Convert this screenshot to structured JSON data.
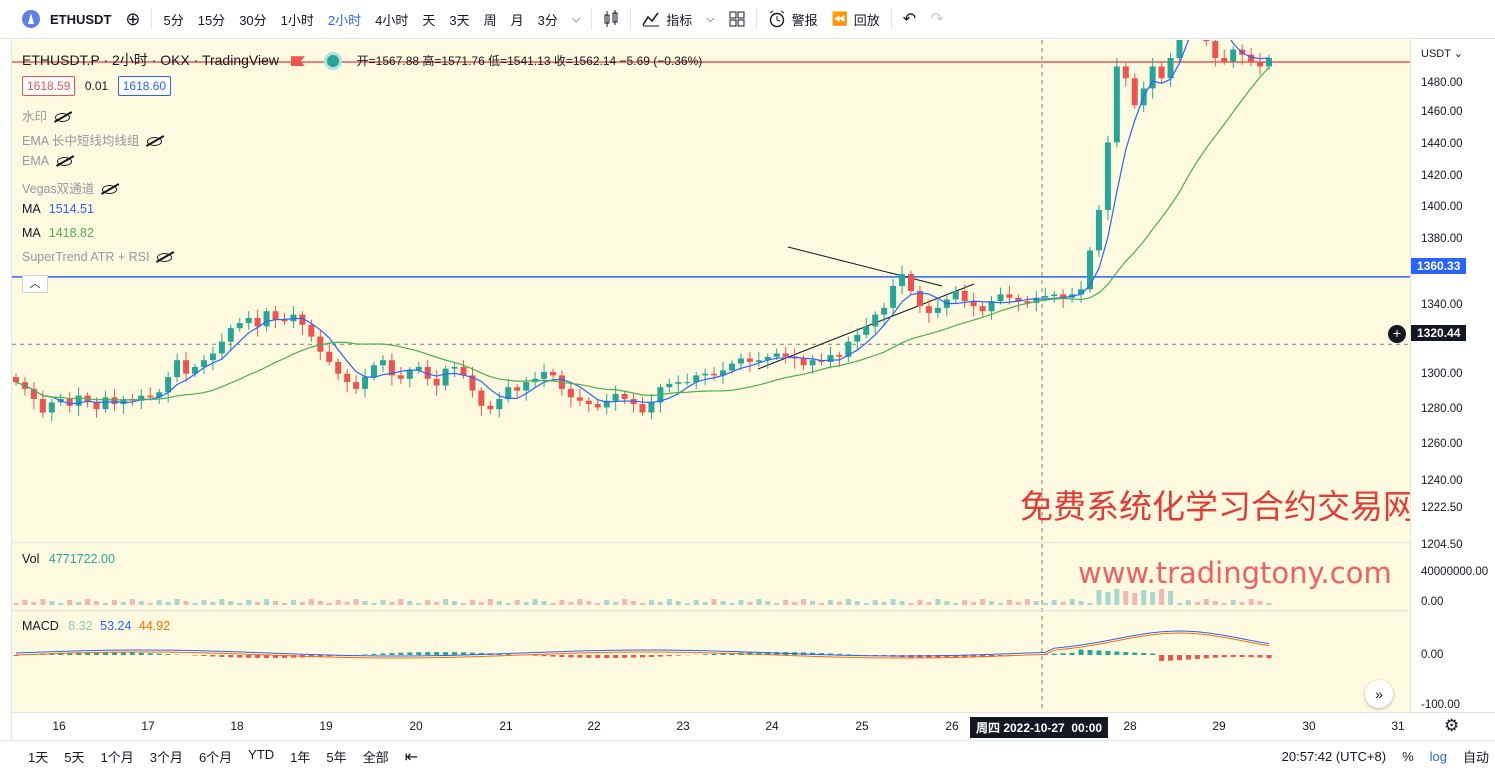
{
  "toolbar": {
    "symbol": "ETHUSDT",
    "intervals": [
      "5分",
      "15分",
      "30分",
      "1小时",
      "2小时",
      "4小时",
      "天",
      "3天",
      "周",
      "月",
      "3分"
    ],
    "active_interval": "2小时",
    "indicators_label": "指标",
    "alert_label": "警报",
    "replay_label": "回放"
  },
  "legend": {
    "title": "ETHUSDT.P · 2小时 · OKX · TradingView",
    "ohlc": "开=1567.88 高=1571.76 低=1541.13 收=1562.14 −5.69 (−0.36%)",
    "bid": "1618.59",
    "spread": "0.01",
    "ask": "1618.60",
    "indicators": [
      {
        "name": "水印",
        "value": "",
        "hidden": true
      },
      {
        "name": "EMA 长中短线均线组",
        "value": "",
        "hidden": true
      },
      {
        "name": "EMA",
        "value": "",
        "hidden": true
      },
      {
        "name": "Vegas双通道",
        "value": "",
        "hidden": true
      },
      {
        "name": "MA",
        "value": "1514.51",
        "hidden": false
      },
      {
        "name": "MA",
        "value": "1418.82",
        "hidden": false
      },
      {
        "name": "SuperTrend ATR + RSI",
        "value": "",
        "hidden": true
      }
    ],
    "vol_label": "Vol",
    "vol_value": "4771722.00",
    "macd_label": "MACD",
    "macd_values": [
      "8.32",
      "53.24",
      "44.92"
    ]
  },
  "watermark": {
    "line1": "免费系统化学习合约交易网站",
    "line2": "www.tradingtony.com"
  },
  "price_axis": {
    "currency": "USDT",
    "ticks": [
      "1480.00",
      "1460.00",
      "1440.00",
      "1420.00",
      "1400.00",
      "1380.00",
      "1340.00",
      "1300.00",
      "1280.00",
      "1260.00",
      "1240.00",
      "1222.50",
      "1204.50"
    ],
    "horizontal_line_label": "1360.33",
    "crosshair_label": "1320.44",
    "vol_ticks": [
      "40000000.00",
      "0.00"
    ],
    "macd_ticks": [
      "0.00",
      "-100.00"
    ]
  },
  "time_axis": {
    "labels": [
      "16",
      "17",
      "18",
      "19",
      "20",
      "21",
      "22",
      "23",
      "24",
      "25",
      "26",
      "28",
      "29",
      "30",
      "31"
    ],
    "crosshair_label": "周四 2022-10-27  00:00"
  },
  "bottombar": {
    "ranges": [
      "1天",
      "5天",
      "1个月",
      "3个月",
      "6个月",
      "YTD",
      "1年",
      "5年",
      "全部"
    ],
    "time": "20:57:42 (UTC+8)",
    "percent": "%",
    "log": "log",
    "auto": "自动"
  },
  "colors": {
    "up": "#26a69a",
    "down": "#ef5350",
    "ma_fast": "#2962ff",
    "ma_slow": "#4caf50",
    "hline": "#2962ff",
    "price_line": "#e53935",
    "bg": "#fefae0"
  },
  "chart_data": {
    "type": "candlestick",
    "x_ticks": [
      "16",
      "17",
      "18",
      "19",
      "20",
      "21",
      "22",
      "23",
      "24",
      "25",
      "26",
      "28",
      "29",
      "30",
      "31"
    ],
    "y_range": [
      1204.5,
      1490
    ],
    "horizontal_line": 1360.33,
    "current_price_line": 1490,
    "ma_fast_last": 1514.51,
    "ma_slow_last": 1418.82,
    "candles_close_approx": [
      1298,
      1294,
      1288,
      1280,
      1286,
      1288,
      1284,
      1290,
      1286,
      1282,
      1289,
      1285,
      1288,
      1287,
      1290,
      1289,
      1292,
      1301,
      1311,
      1303,
      1307,
      1311,
      1315,
      1322,
      1330,
      1333,
      1336,
      1331,
      1340,
      1335,
      1334,
      1338,
      1332,
      1325,
      1316,
      1310,
      1303,
      1298,
      1294,
      1301,
      1308,
      1311,
      1302,
      1300,
      1305,
      1307,
      1300,
      1296,
      1306,
      1307,
      1302,
      1293,
      1284,
      1282,
      1288,
      1295,
      1293,
      1298,
      1300,
      1304,
      1302,
      1294,
      1289,
      1287,
      1285,
      1283,
      1287,
      1291,
      1288,
      1285,
      1280,
      1286,
      1295,
      1297,
      1298,
      1298,
      1302,
      1303,
      1302,
      1305,
      1309,
      1312,
      1310,
      1311,
      1313,
      1315,
      1313,
      1312,
      1308,
      1311,
      1310,
      1314,
      1313,
      1322,
      1326,
      1331,
      1338,
      1342,
      1355,
      1362,
      1352,
      1343,
      1339,
      1342,
      1347,
      1352,
      1346,
      1343,
      1340,
      1346,
      1350,
      1348,
      1346,
      1345,
      1348,
      1349,
      1350,
      1348,
      1350,
      1353,
      1376,
      1400,
      1440,
      1485,
      1478,
      1462,
      1472,
      1485,
      1478,
      1490,
      1510,
      1540,
      1520,
      1500,
      1490,
      1488,
      1495,
      1492,
      1488,
      1485,
      1490
    ]
  }
}
